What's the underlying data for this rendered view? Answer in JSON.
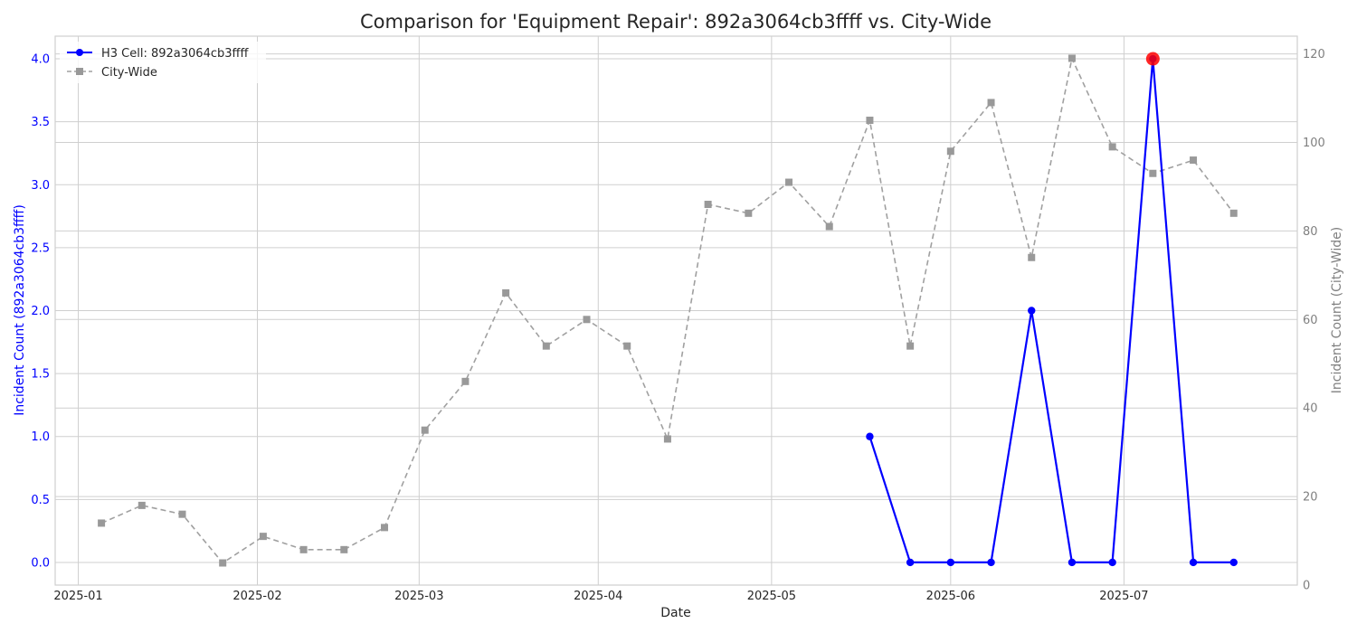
{
  "chart_data": {
    "type": "line",
    "title": "Comparison for 'Equipment Repair': 892a3064cb3ffff vs. City-Wide",
    "xlabel": "Date",
    "ylabel_left": "Incident Count (892a3064cb3ffff)",
    "ylabel_right": "Incident Count (City-Wide)",
    "x_ticks": [
      "2025-01",
      "2025-02",
      "2025-03",
      "2025-04",
      "2025-05",
      "2025-06",
      "2025-07"
    ],
    "y_left_ticks": [
      "0.0",
      "0.5",
      "1.0",
      "1.5",
      "2.0",
      "2.5",
      "3.0",
      "3.5",
      "4.0"
    ],
    "y_right_ticks": [
      "0",
      "20",
      "40",
      "60",
      "80",
      "100",
      "120"
    ],
    "y_left_range": [
      -0.18,
      4.18
    ],
    "y_right_range": [
      0,
      124
    ],
    "x_range": [
      "2024-12-28",
      "2025-07-31"
    ],
    "grid": true,
    "legend_position": "top-left",
    "series": [
      {
        "name": "H3 Cell: 892a3064cb3ffff",
        "axis": "left",
        "color": "#0000ff",
        "style": "solid",
        "marker": "circle",
        "x": [
          "2025-05-18",
          "2025-05-25",
          "2025-06-01",
          "2025-06-08",
          "2025-06-15",
          "2025-06-22",
          "2025-06-29",
          "2025-07-06",
          "2025-07-13",
          "2025-07-20"
        ],
        "values": [
          1,
          0,
          0,
          0,
          2,
          0,
          0,
          4,
          0,
          0
        ]
      },
      {
        "name": "City-Wide",
        "axis": "right",
        "color": "#808080",
        "style": "dashed",
        "marker": "square",
        "x": [
          "2025-01-05",
          "2025-01-12",
          "2025-01-19",
          "2025-01-26",
          "2025-02-02",
          "2025-02-09",
          "2025-02-16",
          "2025-02-23",
          "2025-03-02",
          "2025-03-09",
          "2025-03-16",
          "2025-03-23",
          "2025-03-30",
          "2025-04-06",
          "2025-04-13",
          "2025-04-20",
          "2025-04-27",
          "2025-05-04",
          "2025-05-11",
          "2025-05-18",
          "2025-05-25",
          "2025-06-01",
          "2025-06-08",
          "2025-06-15",
          "2025-06-22",
          "2025-06-29",
          "2025-07-06",
          "2025-07-13",
          "2025-07-20"
        ],
        "values": [
          14,
          18,
          16,
          5,
          11,
          8,
          8,
          13,
          35,
          46,
          66,
          54,
          60,
          54,
          33,
          86,
          84,
          91,
          81,
          105,
          54,
          98,
          109,
          74,
          119,
          99,
          93,
          96,
          84
        ]
      }
    ],
    "highlight": {
      "x": "2025-07-06",
      "value": 4,
      "axis": "left",
      "color": "#ff0000"
    }
  }
}
